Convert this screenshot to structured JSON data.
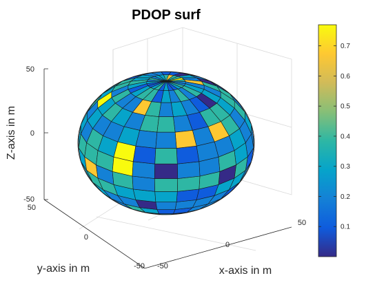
{
  "chart_data": {
    "type": "surface3d",
    "title": "PDOP surf",
    "xlabel": "x-axis in m",
    "ylabel": "y-axis in m",
    "zlabel": "Z-axis in m",
    "xlim": [
      -50,
      50
    ],
    "ylim": [
      -50,
      50
    ],
    "zlim": [
      -50,
      50
    ],
    "x_ticks": [
      "-50",
      "0",
      "50"
    ],
    "y_ticks": [
      "-50",
      "0",
      "50"
    ],
    "z_ticks": [
      "-50",
      "0",
      "50"
    ],
    "grid": true,
    "colormap": "parula",
    "colorbar": {
      "location": "right",
      "ticks": [
        "0.1",
        "0.2",
        "0.3",
        "0.4",
        "0.5",
        "0.6",
        "0.7"
      ],
      "range": [
        0.0,
        0.77
      ]
    },
    "surface": {
      "shape": "sphere",
      "radius": 50,
      "color_values": "PDOP per patch, range approx 0.0 to 0.77"
    }
  }
}
